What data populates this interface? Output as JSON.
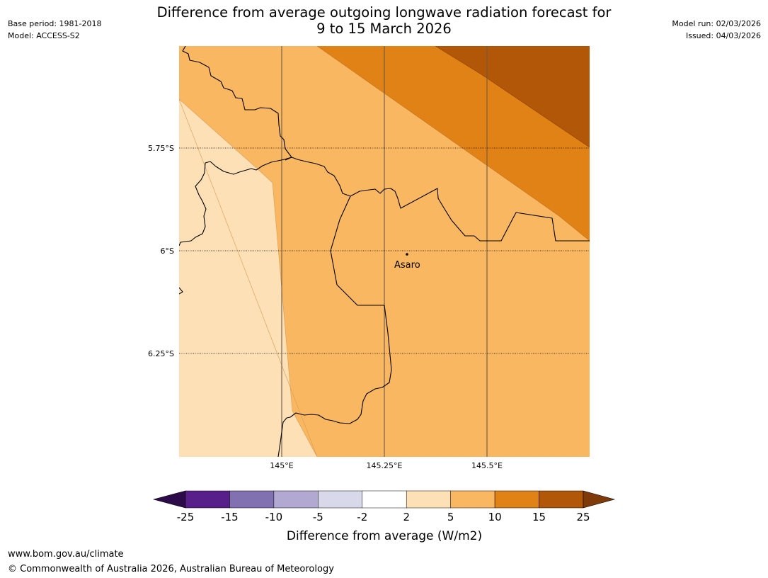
{
  "header": {
    "base_period": "Base period: 1981-2018",
    "model": "Model: ACCESS-S2",
    "title_line1": "Difference from average outgoing longwave radiation forecast for",
    "title_line2": "9 to 15 March 2026",
    "model_run": "Model run: 02/03/2026",
    "issued": "Issued: 04/03/2026"
  },
  "map": {
    "place_label": "Asaro",
    "lat_labels": [
      "5.75°S",
      "6°S",
      "6.25°S"
    ],
    "lon_labels": [
      "145°E",
      "145.25°E",
      "145.5°E"
    ],
    "extent": {
      "lon_min": 144.75,
      "lon_max": 145.75,
      "lat_min": -6.5,
      "lat_max": -5.5
    }
  },
  "colorbar": {
    "ticks": [
      "-25",
      "-15",
      "-10",
      "-5",
      "-2",
      "2",
      "5",
      "10",
      "15",
      "25"
    ],
    "colors": [
      "#581f8a",
      "#8171b0",
      "#b2a9d3",
      "#d8d8ea",
      "#ffffff",
      "#fde0b6",
      "#fab762",
      "#e08215",
      "#b25707"
    ],
    "under_color": "#2d0a4a",
    "over_color": "#7e3b09",
    "label": "Difference from average (W/m2)"
  },
  "footer": {
    "url": "www.bom.gov.au/climate",
    "copyright": "© Commonwealth of Australia 2026, Australian Bureau of Meteorology"
  }
}
